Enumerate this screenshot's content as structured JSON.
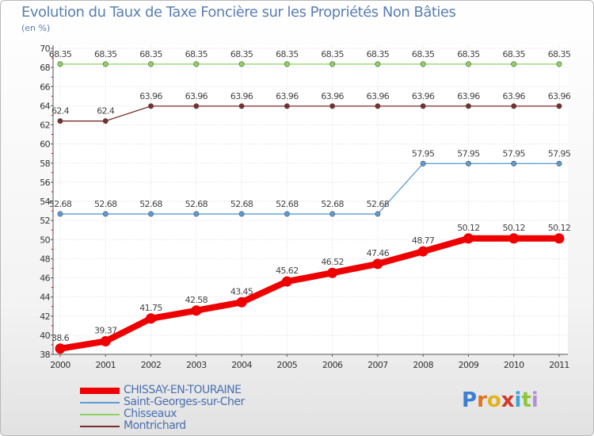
{
  "title": "Evolution du Taux de Taxe Foncière sur les Propriétés Non Bâties",
  "subtitle": "(en %)",
  "logo": {
    "letters": [
      "P",
      "r",
      "o",
      "x",
      "i",
      "t",
      "i"
    ],
    "colors": [
      "#3b7fd1",
      "#e0731c",
      "#e0b41c",
      "#d03a2b",
      "#3aa5d9",
      "#8cc63f",
      "#b58fd6"
    ],
    "text": "Proxiti"
  },
  "chart_data": {
    "type": "line",
    "title": "Evolution du Taux de Taxe Foncière sur les Propriétés Non Bâties",
    "ylabel": "(en %)",
    "xlabel": "",
    "ylim": [
      38,
      70
    ],
    "yticks": [
      38,
      40,
      42,
      44,
      46,
      48,
      50,
      52,
      54,
      56,
      58,
      60,
      62,
      64,
      66,
      68,
      70
    ],
    "categories": [
      "2000",
      "2001",
      "2002",
      "2003",
      "2004",
      "2005",
      "2006",
      "2007",
      "2008",
      "2009",
      "2010",
      "2011"
    ],
    "grid": true,
    "series": [
      {
        "name": "CHISSAY-EN-TOURAINE",
        "color": "#ee0000",
        "labelsBelow": false,
        "values": [
          38.6,
          39.37,
          41.75,
          42.58,
          43.45,
          45.62,
          46.52,
          47.46,
          48.77,
          50.12,
          50.12,
          50.12
        ],
        "labels": [
          "38.6",
          "39.37",
          "41.75",
          "42.58",
          "43.45",
          "45.62",
          "46.52",
          "47.46",
          "48.77",
          "50.12",
          "50.12",
          "50.12"
        ]
      },
      {
        "name": "Saint-Georges-sur-Cher",
        "color": "#5b9bd5",
        "labelsBelow": false,
        "values": [
          52.68,
          52.68,
          52.68,
          52.68,
          52.68,
          52.68,
          52.68,
          52.68,
          57.95,
          57.95,
          57.95,
          57.95
        ],
        "labels": [
          "52.68",
          "52.68",
          "52.68",
          "52.68",
          "52.68",
          "52.68",
          "52.68",
          "52.68",
          "57.95",
          "57.95",
          "57.95",
          "57.95"
        ]
      },
      {
        "name": "Chisseaux",
        "color": "#8dd35f",
        "labelsBelow": false,
        "values": [
          68.35,
          68.35,
          68.35,
          68.35,
          68.35,
          68.35,
          68.35,
          68.35,
          68.35,
          68.35,
          68.35,
          68.35
        ],
        "labels": [
          "68.35",
          "68.35",
          "68.35",
          "68.35",
          "68.35",
          "68.35",
          "68.35",
          "68.35",
          "68.35",
          "68.35",
          "68.35",
          "68.35"
        ]
      },
      {
        "name": "Montrichard",
        "color": "#7a2f2f",
        "labelsBelow": false,
        "values": [
          62.4,
          62.4,
          63.96,
          63.96,
          63.96,
          63.96,
          63.96,
          63.96,
          63.96,
          63.96,
          63.96,
          63.96
        ],
        "labels": [
          "62.4",
          "62.4",
          "63.96",
          "63.96",
          "63.96",
          "63.96",
          "63.96",
          "63.96",
          "63.96",
          "63.96",
          "63.96",
          "63.96"
        ]
      }
    ],
    "legend_position": "bottom-left"
  }
}
